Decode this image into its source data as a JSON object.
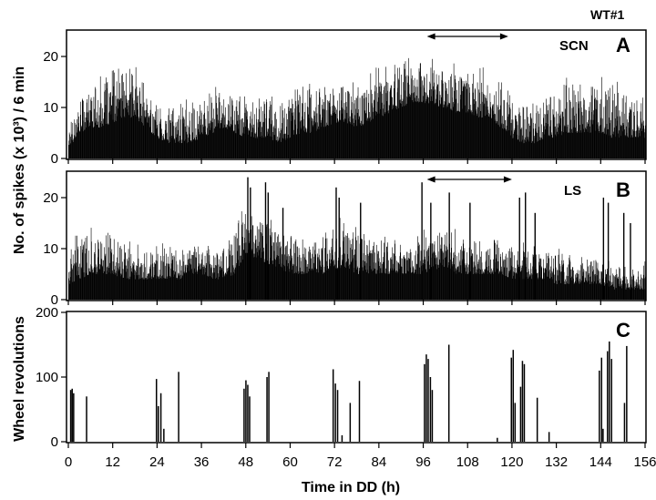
{
  "figure": {
    "id_label": "WT#1",
    "shared_ylabel": "No. of spikes (x 10³) / 6 min",
    "xlabel": "Time in DD (h)",
    "x_ticks": [
      0,
      12,
      24,
      36,
      48,
      60,
      72,
      84,
      96,
      108,
      120,
      132,
      144,
      156
    ],
    "xlim": [
      0,
      156
    ],
    "ink_color": "#000000"
  },
  "chart_data": [
    {
      "type": "bar",
      "panel": "A",
      "region": "SCN",
      "ylabel": "",
      "ylim": [
        0,
        25
      ],
      "y_ticks": [
        0,
        10,
        20
      ],
      "bin_minutes": 6,
      "arrow_range_hours": [
        97,
        119
      ],
      "envelope_hours": [
        0,
        3,
        6,
        9,
        12,
        15,
        18,
        21,
        24,
        27,
        30,
        33,
        36,
        39,
        42,
        45,
        48,
        51,
        54,
        57,
        60,
        63,
        66,
        69,
        72,
        75,
        78,
        81,
        84,
        87,
        90,
        93,
        96,
        99,
        102,
        105,
        108,
        111,
        114,
        117,
        120,
        123,
        126,
        129,
        132,
        135,
        138,
        141,
        144,
        147,
        150,
        153,
        156
      ],
      "baseline": [
        2,
        5,
        6,
        6,
        7,
        8,
        8,
        6,
        4,
        3,
        3,
        3,
        4,
        5,
        6,
        5,
        4,
        4,
        4,
        3,
        4,
        5,
        5,
        6,
        7,
        7,
        6,
        7,
        8,
        9,
        10,
        11,
        11,
        10,
        10,
        9,
        9,
        8,
        8,
        6,
        4,
        3,
        3,
        4,
        4,
        5,
        5,
        5,
        5,
        4,
        4,
        4,
        4
      ],
      "peak": [
        9,
        13,
        16,
        17,
        19,
        20,
        19,
        15,
        12,
        11,
        12,
        13,
        14,
        15,
        16,
        14,
        13,
        13,
        14,
        13,
        15,
        16,
        17,
        16,
        17,
        18,
        17,
        18,
        19,
        20,
        21,
        20,
        20,
        21,
        21,
        20,
        19,
        19,
        18,
        16,
        14,
        13,
        14,
        15,
        16,
        17,
        17,
        17,
        16,
        16,
        16,
        15,
        15
      ]
    },
    {
      "type": "bar",
      "panel": "B",
      "region": "LS",
      "ylabel": "",
      "ylim": [
        0,
        25
      ],
      "y_ticks": [
        0,
        10,
        20
      ],
      "bin_minutes": 6,
      "arrow_range_hours": [
        97,
        120
      ],
      "envelope_hours": [
        0,
        3,
        6,
        9,
        12,
        15,
        18,
        21,
        24,
        27,
        30,
        33,
        36,
        39,
        42,
        45,
        48,
        51,
        54,
        57,
        60,
        63,
        66,
        69,
        72,
        75,
        78,
        81,
        84,
        87,
        90,
        93,
        96,
        99,
        102,
        105,
        108,
        111,
        114,
        117,
        120,
        123,
        126,
        129,
        132,
        135,
        138,
        141,
        144,
        147,
        150,
        153,
        156
      ],
      "baseline": [
        3,
        4,
        5,
        5,
        5,
        4,
        4,
        4,
        4,
        4,
        4,
        5,
        5,
        4,
        4,
        5,
        9,
        8,
        7,
        6,
        5,
        5,
        5,
        5,
        6,
        6,
        5,
        5,
        5,
        5,
        5,
        5,
        5,
        6,
        6,
        5,
        5,
        5,
        5,
        5,
        4,
        4,
        4,
        4,
        3,
        3,
        3,
        3,
        3,
        2,
        2,
        2,
        2
      ],
      "peak": [
        12,
        14,
        15,
        15,
        14,
        12,
        12,
        12,
        12,
        12,
        11,
        12,
        13,
        13,
        14,
        16,
        22,
        20,
        18,
        16,
        15,
        14,
        14,
        14,
        17,
        18,
        16,
        15,
        14,
        14,
        13,
        13,
        14,
        16,
        15,
        14,
        13,
        13,
        13,
        13,
        13,
        12,
        12,
        12,
        11,
        10,
        9,
        9,
        9,
        8,
        8,
        8,
        8
      ],
      "spikes": [
        {
          "x": 48.5,
          "y": 24
        },
        {
          "x": 49.2,
          "y": 22
        },
        {
          "x": 53.3,
          "y": 23
        },
        {
          "x": 54.0,
          "y": 21
        },
        {
          "x": 58.0,
          "y": 18
        },
        {
          "x": 72.4,
          "y": 22
        },
        {
          "x": 73.2,
          "y": 20
        },
        {
          "x": 79.0,
          "y": 19
        },
        {
          "x": 95.6,
          "y": 23
        },
        {
          "x": 98.0,
          "y": 19
        },
        {
          "x": 103.0,
          "y": 21
        },
        {
          "x": 108.6,
          "y": 19
        },
        {
          "x": 122.0,
          "y": 20
        },
        {
          "x": 123.6,
          "y": 21
        },
        {
          "x": 126.2,
          "y": 17
        },
        {
          "x": 144.7,
          "y": 20
        },
        {
          "x": 146.0,
          "y": 19
        },
        {
          "x": 150.2,
          "y": 17
        },
        {
          "x": 152.0,
          "y": 15
        }
      ]
    },
    {
      "type": "bar",
      "panel": "C",
      "region": "",
      "ylabel": "Wheel revolutions",
      "ylim": [
        0,
        200
      ],
      "y_ticks": [
        0,
        100,
        200
      ],
      "events": [
        {
          "x": 0.6,
          "y": 80
        },
        {
          "x": 1.0,
          "y": 82
        },
        {
          "x": 1.4,
          "y": 75
        },
        {
          "x": 4.9,
          "y": 70
        },
        {
          "x": 23.8,
          "y": 97
        },
        {
          "x": 24.3,
          "y": 55
        },
        {
          "x": 25.0,
          "y": 75
        },
        {
          "x": 25.8,
          "y": 20
        },
        {
          "x": 29.8,
          "y": 108
        },
        {
          "x": 47.5,
          "y": 82
        },
        {
          "x": 48.0,
          "y": 95
        },
        {
          "x": 48.5,
          "y": 88
        },
        {
          "x": 49.0,
          "y": 70
        },
        {
          "x": 53.7,
          "y": 100
        },
        {
          "x": 54.2,
          "y": 108
        },
        {
          "x": 71.6,
          "y": 112
        },
        {
          "x": 72.2,
          "y": 90
        },
        {
          "x": 72.8,
          "y": 80
        },
        {
          "x": 74.0,
          "y": 10
        },
        {
          "x": 76.2,
          "y": 60
        },
        {
          "x": 78.7,
          "y": 94
        },
        {
          "x": 96.3,
          "y": 120
        },
        {
          "x": 96.8,
          "y": 135
        },
        {
          "x": 97.3,
          "y": 128
        },
        {
          "x": 97.9,
          "y": 100
        },
        {
          "x": 98.4,
          "y": 80
        },
        {
          "x": 102.9,
          "y": 150
        },
        {
          "x": 116.0,
          "y": 6
        },
        {
          "x": 119.8,
          "y": 130
        },
        {
          "x": 120.3,
          "y": 142
        },
        {
          "x": 120.8,
          "y": 60
        },
        {
          "x": 122.3,
          "y": 85
        },
        {
          "x": 122.8,
          "y": 125
        },
        {
          "x": 123.3,
          "y": 120
        },
        {
          "x": 126.8,
          "y": 68
        },
        {
          "x": 130.0,
          "y": 15
        },
        {
          "x": 143.6,
          "y": 110
        },
        {
          "x": 144.2,
          "y": 130
        },
        {
          "x": 144.6,
          "y": 20
        },
        {
          "x": 145.8,
          "y": 140
        },
        {
          "x": 146.3,
          "y": 155
        },
        {
          "x": 146.9,
          "y": 128
        },
        {
          "x": 150.4,
          "y": 60
        },
        {
          "x": 151.0,
          "y": 148
        }
      ]
    }
  ]
}
